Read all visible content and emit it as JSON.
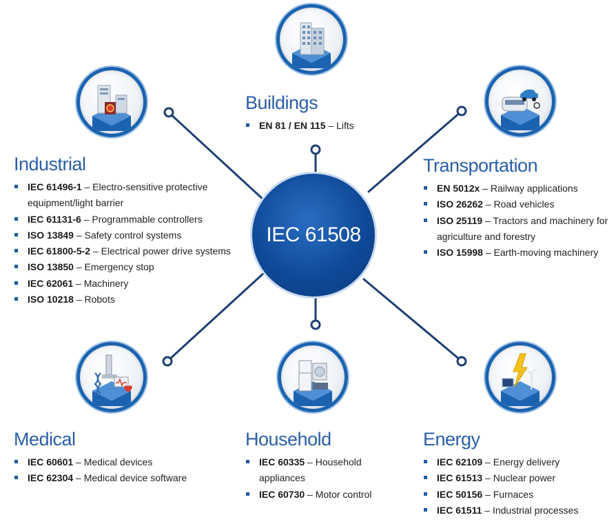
{
  "hub": {
    "label": "IEC 61508"
  },
  "colors": {
    "primary_blue": "#1b63b0",
    "dark_blue": "#0f4a98",
    "title_blue": "#2a5fa8",
    "line_blue": "#1d3f72"
  },
  "sections": {
    "buildings": {
      "title": "Buildings",
      "icon": "buildings-icon",
      "items": [
        {
          "code": "EN 81 / EN 115",
          "desc": " – Lifts"
        }
      ]
    },
    "industrial": {
      "title": "Industrial",
      "icon": "industrial-icon",
      "items": [
        {
          "code": "IEC 61496-1",
          "desc": " – Electro-sensitive protective equipment/light barrier"
        },
        {
          "code": "IEC 61131-6",
          "desc": " – Programmable controllers"
        },
        {
          "code": "ISO 13849",
          "desc": " – Safety control systems"
        },
        {
          "code": "IEC 61800-5-2",
          "desc": " – Electrical power drive systems"
        },
        {
          "code": "ISO 13850",
          "desc": " – Emergency stop"
        },
        {
          "code": "IEC 62061",
          "desc": " – Machinery"
        },
        {
          "code": "ISO 10218",
          "desc": " – Robots"
        }
      ]
    },
    "transportation": {
      "title": "Transportation",
      "icon": "transportation-icon",
      "items": [
        {
          "code": "EN 5012x",
          "desc": " – Railway applications"
        },
        {
          "code": "ISO 26262",
          "desc": " – Road vehicles"
        },
        {
          "code": "ISO 25119",
          "desc": " – Tractors and machinery for agriculture and forestry"
        },
        {
          "code": "ISO 15998",
          "desc": " – Earth-moving machinery"
        }
      ]
    },
    "medical": {
      "title": "Medical",
      "icon": "medical-icon",
      "items": [
        {
          "code": "IEC 60601",
          "desc": " – Medical devices"
        },
        {
          "code": "IEC 62304",
          "desc": " – Medical device software"
        }
      ]
    },
    "household": {
      "title": "Household",
      "icon": "household-icon",
      "items": [
        {
          "code": "IEC 60335",
          "desc": " – Household appliances"
        },
        {
          "code": "IEC 60730",
          "desc": " – Motor control"
        }
      ]
    },
    "energy": {
      "title": "Energy",
      "icon": "energy-icon",
      "items": [
        {
          "code": "IEC 62109",
          "desc": " – Energy delivery"
        },
        {
          "code": "IEC 61513",
          "desc": " – Nuclear power"
        },
        {
          "code": "IEC 50156",
          "desc": " – Furnaces"
        },
        {
          "code": "IEC 61511",
          "desc": " – Industrial processes"
        }
      ]
    }
  }
}
